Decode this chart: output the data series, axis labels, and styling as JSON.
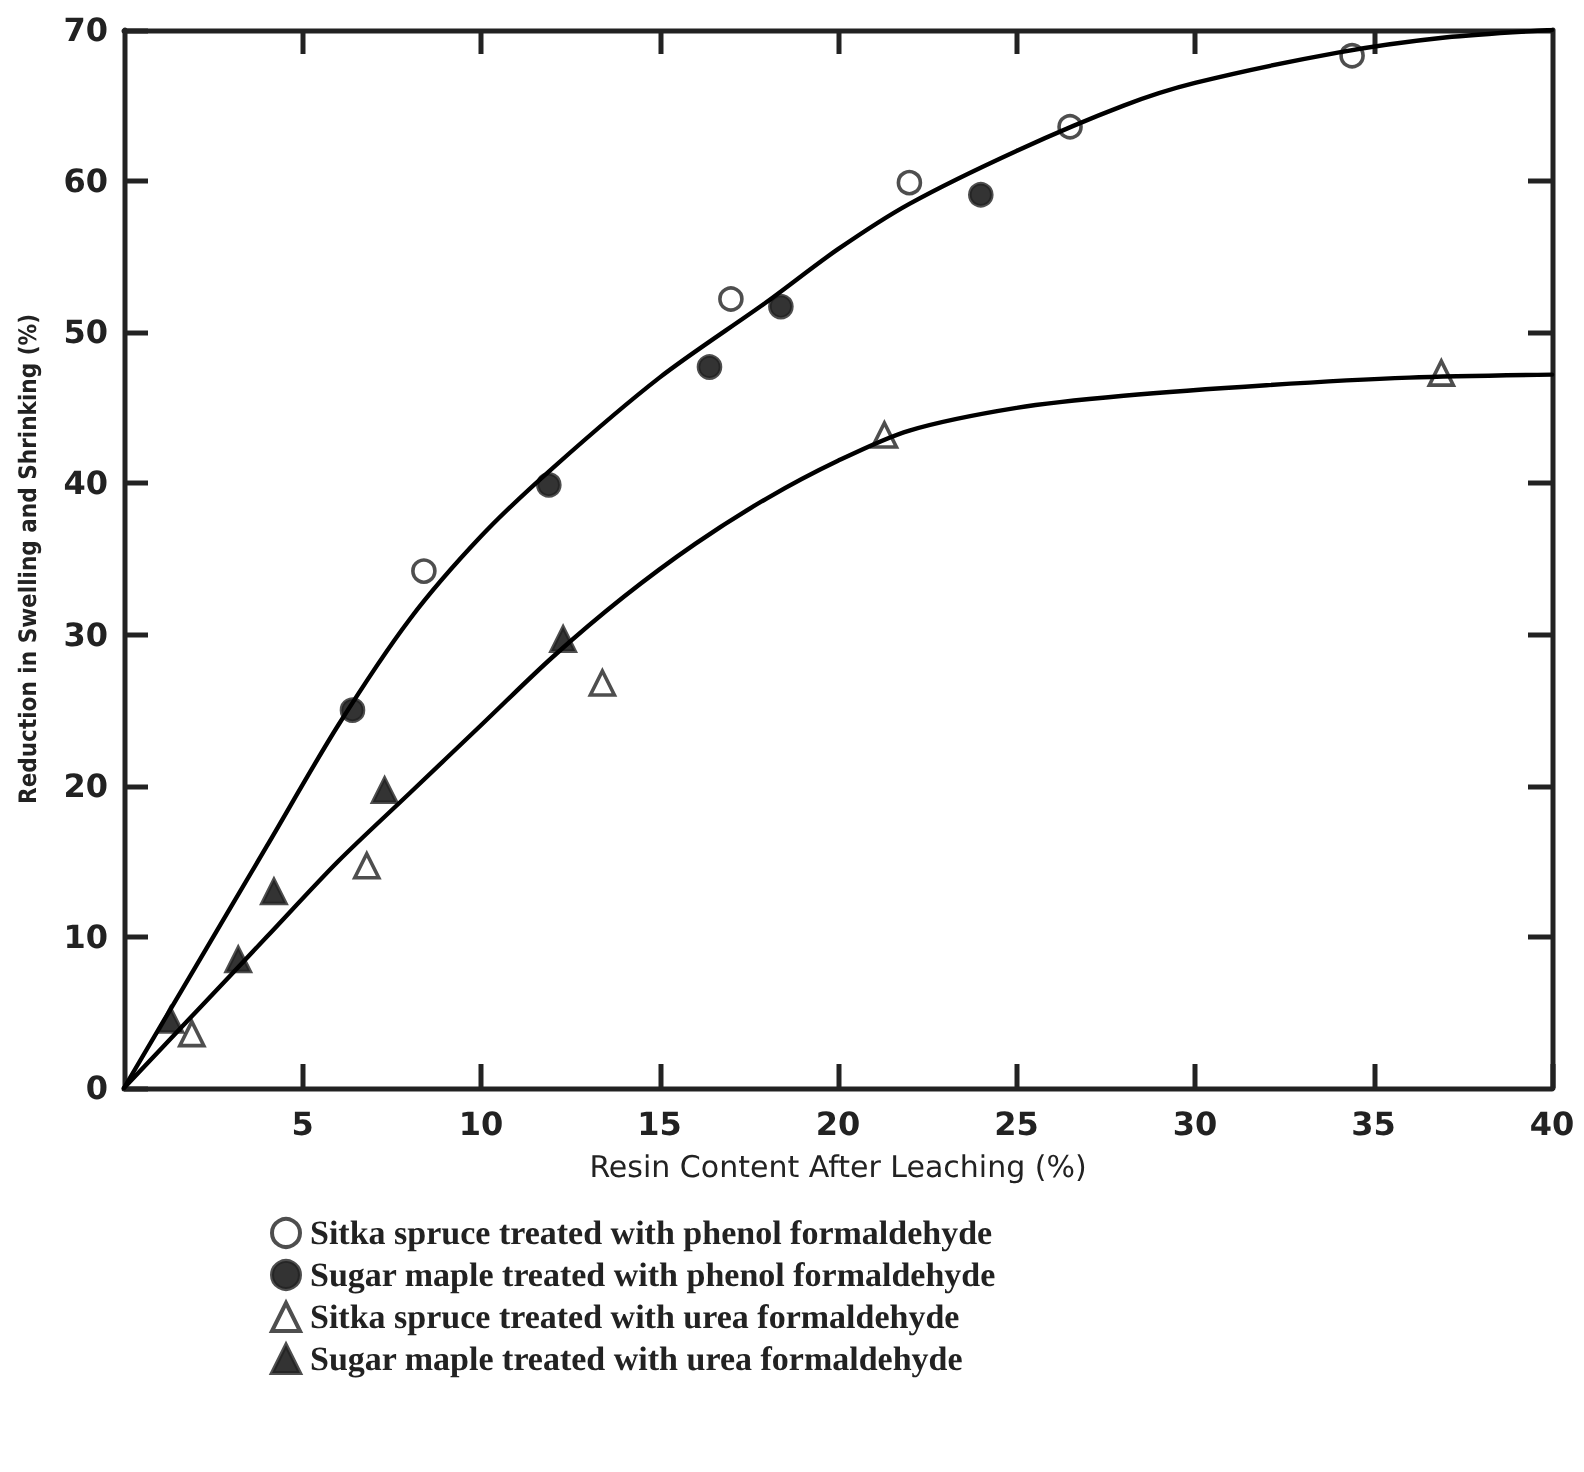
{
  "chart_data": {
    "type": "scatter",
    "xlabel": "Resin Content After Leaching (%)",
    "ylabel": "Reduction in Swelling and Shrinking (%)",
    "xlim": [
      0,
      40
    ],
    "ylim": [
      0,
      70
    ],
    "xticks": [
      5,
      10,
      15,
      20,
      25,
      30,
      35,
      40
    ],
    "yticks": [
      0,
      10,
      20,
      30,
      40,
      50,
      60,
      70
    ],
    "grid": false,
    "legend": "bottom",
    "series": [
      {
        "name": "Sitka spruce treated with phenol formaldehyde",
        "color": "#ffffff",
        "marker": "circle",
        "x": [
          8.4,
          17.0,
          22.0,
          26.5,
          34.4
        ],
        "values": [
          34.2,
          52.2,
          59.9,
          63.6,
          68.3
        ]
      },
      {
        "name": "Sugar maple treated with phenol formaldehyde",
        "color": "#000000",
        "marker": "circle",
        "x": [
          6.4,
          11.9,
          16.4,
          18.4,
          24.0
        ],
        "values": [
          25.0,
          39.9,
          47.7,
          51.7,
          59.1
        ]
      },
      {
        "name": "Sitka spruce treated with urea formaldehyde",
        "color": "#ffffff",
        "marker": "triangle",
        "x": [
          1.9,
          6.8,
          13.4,
          21.3,
          36.9
        ],
        "values": [
          3.6,
          14.7,
          26.8,
          43.2,
          47.3
        ]
      },
      {
        "name": "Sugar maple treated with urea formaldehyde",
        "color": "#000000",
        "marker": "triangle",
        "x": [
          1.3,
          3.2,
          4.2,
          7.3,
          12.3
        ],
        "values": [
          4.5,
          8.5,
          13.0,
          19.7,
          29.7
        ]
      },
      {
        "type": "line",
        "color": "#000000",
        "marker": "none",
        "line_style": "solid",
        "x": [
          0,
          2,
          4,
          6,
          8,
          10,
          12,
          15,
          18,
          20,
          22,
          25,
          28,
          30,
          34,
          37,
          40
        ],
        "values": [
          0,
          8,
          16,
          24,
          31,
          36.5,
          41,
          47,
          52,
          55.5,
          58.5,
          62,
          65,
          66.5,
          68.5,
          69.5,
          70
        ]
      },
      {
        "type": "line",
        "color": "#000000",
        "marker": "none",
        "line_style": "solid",
        "x": [
          0,
          2,
          4,
          6,
          8,
          10,
          12,
          14,
          16,
          18,
          20,
          22,
          25,
          28,
          32,
          36,
          40
        ],
        "values": [
          0,
          5,
          10,
          15,
          19.5,
          24,
          28.5,
          32.5,
          36,
          39,
          41.5,
          43.5,
          45,
          45.8,
          46.5,
          47,
          47.2
        ]
      }
    ]
  }
}
